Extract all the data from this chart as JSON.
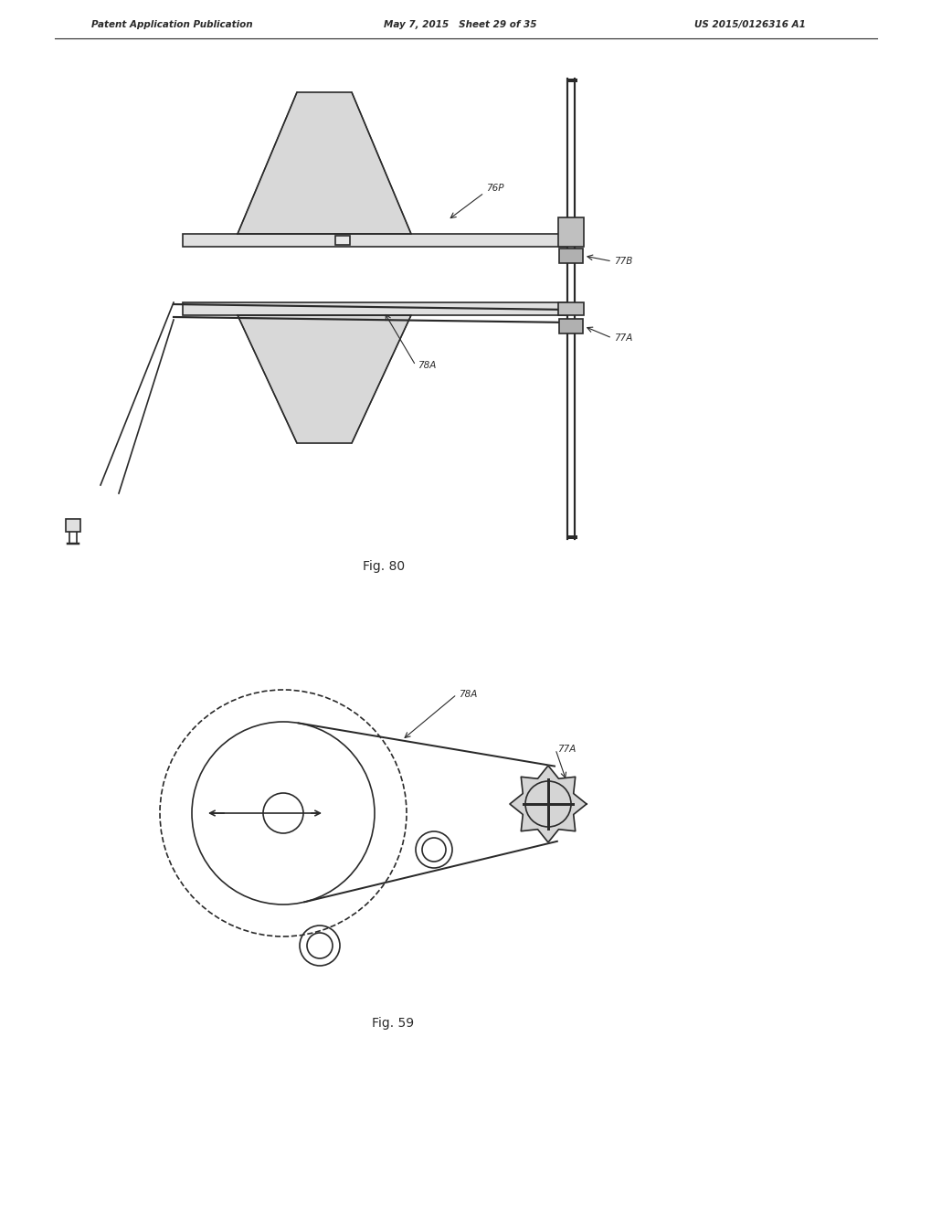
{
  "bg_color": "#ffffff",
  "line_color": "#2a2a2a",
  "header_left": "Patent Application Publication",
  "header_mid": "May 7, 2015   Sheet 29 of 35",
  "header_right": "US 2015/0126316 A1",
  "fig80_label": "Fig. 80",
  "fig59_label": "Fig. 59",
  "label_76P": "76P",
  "label_77B": "77B",
  "label_78A_top": "78A",
  "label_77A_top": "77A",
  "label_78A_bot": "78A",
  "label_77A_bot": "77A"
}
